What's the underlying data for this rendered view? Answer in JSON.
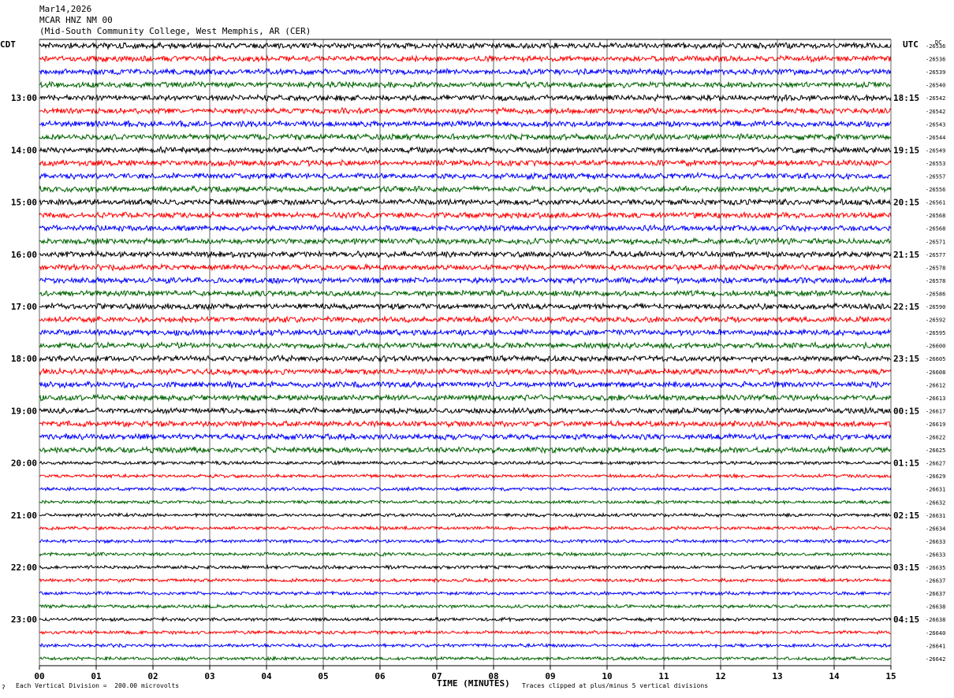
{
  "header": {
    "date": "Mar14,2026",
    "station": "MCAR HNZ NM 00",
    "location": "(Mid-South Community College, West Memphis, AR (CER)"
  },
  "left_axis_label": "CDT",
  "right_axis_label": "UTC",
  "dc_label": "DC",
  "footer": {
    "scale_note": "Each Vertical Division =  200.00 microvolts",
    "clip_note": "Traces clipped at plus/minus 5 vertical divisions",
    "corner_mark": "ʔ"
  },
  "colors": {
    "trace_cycle": [
      "#000000",
      "#ff0000",
      "#0000ff",
      "#006400"
    ],
    "grid": "#000000"
  },
  "chart_data": {
    "type": "line",
    "title": "MCAR HNZ NM 00",
    "xlabel": "TIME (MINUTES)",
    "ylabel": "",
    "x_ticks": [
      "00",
      "01",
      "02",
      "03",
      "04",
      "05",
      "06",
      "07",
      "08",
      "09",
      "10",
      "11",
      "12",
      "13",
      "14",
      "15"
    ],
    "xlim": [
      0,
      15
    ],
    "minutes_per_line": 15,
    "left_time_labels": [
      "13:00",
      "14:00",
      "15:00",
      "16:00",
      "17:00",
      "18:00",
      "19:00",
      "20:00",
      "21:00",
      "22:00",
      "23:00"
    ],
    "right_time_labels": [
      "18:15",
      "19:15",
      "20:15",
      "21:15",
      "22:15",
      "23:15",
      "00:15",
      "01:15",
      "02:15",
      "03:15",
      "04:15"
    ],
    "dc_offsets": [
      -26536,
      -26536,
      -26539,
      -26540,
      -26542,
      -26542,
      -26543,
      -26544,
      -26549,
      -26553,
      -26557,
      -26556,
      -26561,
      -26568,
      -26568,
      -26571,
      -26577,
      -26578,
      -26578,
      -26586,
      -26590,
      -26592,
      -26595,
      -26600,
      -26605,
      -26608,
      -26612,
      -26613,
      -26617,
      -26619,
      -26622,
      -26625,
      -26627,
      -26629,
      -26631,
      -26632,
      -26631,
      -26634,
      -26633,
      -26633,
      -26635,
      -26637,
      -26637,
      -26638,
      -26638,
      -26640,
      -26641,
      -26642
    ],
    "trace_count": 48,
    "grid": true
  }
}
